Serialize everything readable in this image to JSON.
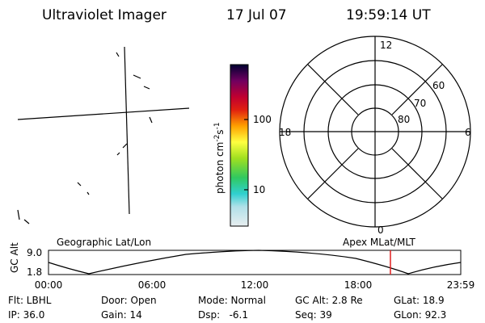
{
  "header": {
    "instrument": "Ultraviolet Imager",
    "date": "17 Jul 07",
    "time": "19:59:14 UT"
  },
  "colorbar": {
    "label": "photon cm",
    "exp1": "-2",
    "unit2": "s",
    "exp2": "-1",
    "ticks": [
      "100",
      "10"
    ]
  },
  "polar": {
    "mlt_labels": [
      "12",
      "18",
      "6",
      "0"
    ],
    "lat_labels": [
      "60",
      "70",
      "80"
    ]
  },
  "altitude": {
    "axis_label": "GC Alt",
    "ticks": [
      "9.0",
      "1.8"
    ],
    "left_title": "Geographic Lat/Lon",
    "right_title": "Apex MLat/MLT",
    "time_ticks": [
      "00:00",
      "06:00",
      "12:00",
      "18:00",
      "23:59"
    ]
  },
  "footer": {
    "rows": [
      [
        "Flt: LBHL",
        "Door: Open",
        "Mode: Normal",
        "GC Alt: 2.8 Re",
        "GLat: 18.9"
      ],
      [
        "IP: 36.0",
        "Gain: 14",
        "Dsp:   -6.1",
        "Seq: 39",
        "GLon: 92.3"
      ]
    ]
  }
}
